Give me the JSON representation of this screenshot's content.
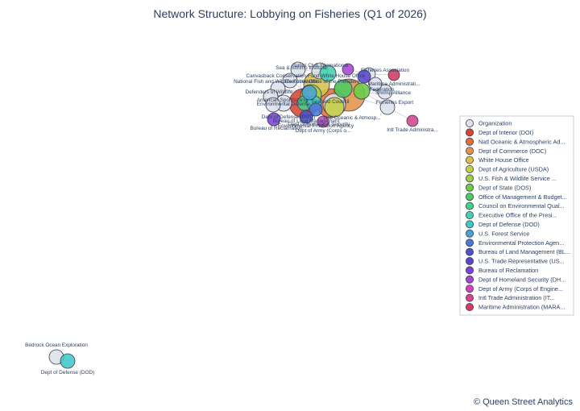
{
  "chart_data": {
    "type": "network",
    "title": "Network Structure: Lobbying on Fisheries (Q1 of 2026)",
    "credit": "© Queen Street Analytics",
    "legend_placement": "right",
    "legend": [
      {
        "label": "Organization",
        "color": "#dde1ea"
      },
      {
        "label": "Dept of Interior (DOI)",
        "color": "#d94535"
      },
      {
        "label": "Natl Oceanic & Atmospheric Ad...",
        "color": "#e0703a"
      },
      {
        "label": "Dept of Commerce (DOC)",
        "color": "#e0944a"
      },
      {
        "label": "White House Office",
        "color": "#d8c24a"
      },
      {
        "label": "Dept of Agriculture (USDA)",
        "color": "#c4cf45"
      },
      {
        "label": "U.S. Fish & Wildlife Service ...",
        "color": "#9ccf45"
      },
      {
        "label": "Dept of State (DOS)",
        "color": "#6bcc48"
      },
      {
        "label": "Office of Management & Budget...",
        "color": "#4ccc5e"
      },
      {
        "label": "Council on Environmental Qual...",
        "color": "#45cf8a"
      },
      {
        "label": "Executive Office of the Presi...",
        "color": "#45d0b0"
      },
      {
        "label": "Dept of Defense (DOD)",
        "color": "#3fc8c8"
      },
      {
        "label": "U.S. Forest Service",
        "color": "#4aa2d8"
      },
      {
        "label": "Environmental Protection Agen...",
        "color": "#4a78d8"
      },
      {
        "label": "Bureau of Land Management (BL...",
        "color": "#4a52d0"
      },
      {
        "label": "U.S. Trade Representative (US...",
        "color": "#5a45d0"
      },
      {
        "label": "Bureau of Reclamation",
        "color": "#7a45d0"
      },
      {
        "label": "Dept of Homeland Security (DH...",
        "color": "#a845d0"
      },
      {
        "label": "Dept of Army (Corps of Engine...",
        "color": "#cf45c0"
      },
      {
        "label": "Intl Trade Administration (IT...",
        "color": "#d24590"
      },
      {
        "label": "Maritime Administration (MARA...",
        "color": "#d43a62"
      }
    ],
    "nodes": [
      {
        "id": "o1",
        "label": "Safari Club International",
        "group": "Organization"
      },
      {
        "id": "o2",
        "label": "Sea & Shrimp Institute",
        "group": "Organization"
      },
      {
        "id": "o3",
        "label": "Fisheries Association",
        "group": "Organization"
      },
      {
        "id": "o4",
        "label": "Canvasback Conservation Fund",
        "group": "Organization"
      },
      {
        "id": "o5",
        "label": "National Fish and Wildlife Foundation",
        "group": "Organization"
      },
      {
        "id": "o6",
        "label": "Defenders of Wildlife",
        "group": "Organization"
      },
      {
        "id": "o7",
        "label": "Shrimp Alliance",
        "group": "Organization"
      },
      {
        "id": "o8",
        "label": "Federation",
        "group": "Organization"
      },
      {
        "id": "o9",
        "label": "Fisheries Export",
        "group": "Organization"
      },
      {
        "id": "o10",
        "label": "Environmental Defense",
        "group": "Organization"
      },
      {
        "id": "o11",
        "label": "American Sportfishing",
        "group": "Organization"
      },
      {
        "id": "o12",
        "label": "Seafood Council",
        "group": "Organization"
      },
      {
        "id": "o13",
        "label": "Bedrock Ocean Exploration",
        "group": "Organization"
      },
      {
        "id": "a1",
        "label": "Dept of Interior (DOI)",
        "group": "Dept of Interior (DOI)"
      },
      {
        "id": "a2",
        "label": "Natl Oceanic & Atmosp...",
        "group": "Natl Oceanic & Atmospheric Ad..."
      },
      {
        "id": "a3",
        "label": "Dept of Commerce (DOC)",
        "group": "Dept of Commerce (DOC)"
      },
      {
        "id": "a4",
        "label": "White House Office",
        "group": "White House Office"
      },
      {
        "id": "a5",
        "label": "Dept of Agriculture (USDA)",
        "group": "Dept of Agriculture (USDA)"
      },
      {
        "id": "a6",
        "label": "U.S. Fish & Wildlife Service",
        "group": "U.S. Fish & Wildlife Service ..."
      },
      {
        "id": "a7",
        "label": "Dept of State (DOS)",
        "group": "Dept of State (DOS)"
      },
      {
        "id": "a8",
        "label": "Office of Management & Budget",
        "group": "Office of Management & Budget..."
      },
      {
        "id": "a9",
        "label": "Council on Environmental Quality",
        "group": "Council on Environmental Qual..."
      },
      {
        "id": "a10",
        "label": "Executive Office of the President",
        "group": "Executive Office of the Presi..."
      },
      {
        "id": "a11",
        "label": "Dept of Defense (DOD)",
        "group": "Dept of Defense (DOD)"
      },
      {
        "id": "a12",
        "label": "U.S. Forest Service",
        "group": "U.S. Forest Service"
      },
      {
        "id": "a13",
        "label": "Environmental Protection Agency",
        "group": "Environmental Protection Agen..."
      },
      {
        "id": "a14",
        "label": "Bureau of Land Management",
        "group": "Bureau of Land Management (BL..."
      },
      {
        "id": "a15",
        "label": "U.S. Trade Representative",
        "group": "U.S. Trade Representative (US..."
      },
      {
        "id": "a16",
        "label": "Bureau of Reclamation",
        "group": "Bureau of Reclamation"
      },
      {
        "id": "a17",
        "label": "Dept of Homeland Security",
        "group": "Dept of Homeland Security (DH..."
      },
      {
        "id": "a18",
        "label": "Dept of Army (Corps o...",
        "group": "Dept of Army (Corps of Engine..."
      },
      {
        "id": "a19",
        "label": "Intl Trade Administra...",
        "group": "Intl Trade Administration (IT..."
      },
      {
        "id": "a20",
        "label": "Maritime Administrati...",
        "group": "Maritime Administration (MARA..."
      },
      {
        "id": "a21",
        "label": "Dept of Defense (DOD)",
        "group": "Dept of Defense (DOD)"
      }
    ],
    "edges": [
      [
        "o1",
        "a4"
      ],
      [
        "o1",
        "a10"
      ],
      [
        "o1",
        "a2"
      ],
      [
        "o2",
        "a6"
      ],
      [
        "o2",
        "a1"
      ],
      [
        "o3",
        "a17"
      ],
      [
        "o3",
        "a20"
      ],
      [
        "o4",
        "a1"
      ],
      [
        "o4",
        "a6"
      ],
      [
        "o5",
        "a6"
      ],
      [
        "o5",
        "a12"
      ],
      [
        "o6",
        "a1"
      ],
      [
        "o6",
        "a16"
      ],
      [
        "o7",
        "a8"
      ],
      [
        "o7",
        "a3"
      ],
      [
        "o8",
        "a7"
      ],
      [
        "o8",
        "a5"
      ],
      [
        "o9",
        "a19"
      ],
      [
        "o9",
        "a3"
      ],
      [
        "o10",
        "a13"
      ],
      [
        "o10",
        "a9"
      ],
      [
        "o11",
        "a2"
      ],
      [
        "o11",
        "a14"
      ],
      [
        "o12",
        "a3"
      ],
      [
        "o12",
        "a18"
      ],
      [
        "o13",
        "a21"
      ],
      [
        "o9",
        "a7"
      ],
      [
        "o3",
        "a15"
      ],
      [
        "o2",
        "a10"
      ]
    ]
  }
}
